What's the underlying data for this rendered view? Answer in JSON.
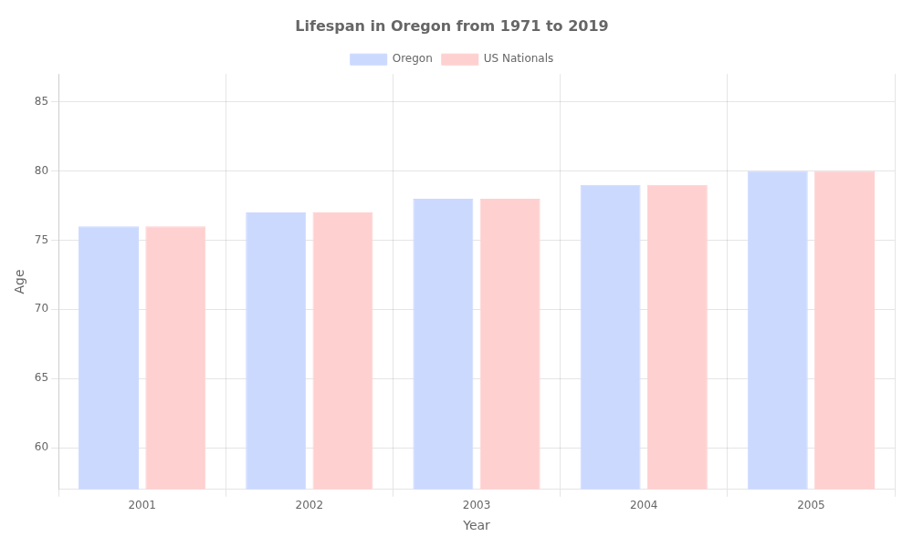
{
  "chart_data": {
    "type": "bar",
    "title": "Lifespan in Oregon from 1971 to 2019",
    "xlabel": "Year",
    "ylabel": "Age",
    "categories": [
      "2001",
      "2002",
      "2003",
      "2004",
      "2005"
    ],
    "series": [
      {
        "name": "Oregon",
        "color": "#ccd9ff",
        "values": [
          76.0,
          77.0,
          78.0,
          79.0,
          80.0
        ]
      },
      {
        "name": "US Nationals",
        "color": "#ffd0d0",
        "values": [
          76.0,
          77.0,
          78.0,
          79.0,
          80.0
        ]
      }
    ],
    "ylim": [
      57,
      87
    ],
    "yticks": [
      60,
      65,
      70,
      75,
      80,
      85
    ],
    "grid": true,
    "legend": "top"
  }
}
